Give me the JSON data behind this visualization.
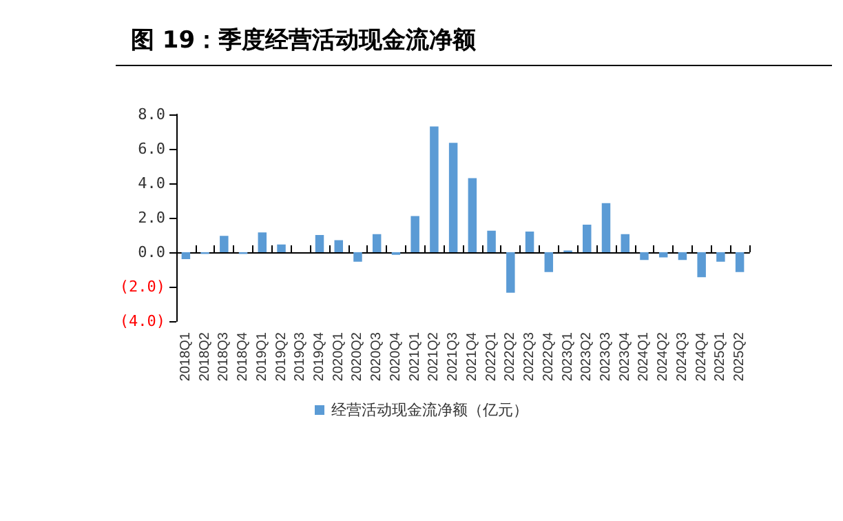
{
  "chart_data": {
    "type": "bar",
    "title": "图 19：季度经营活动现金流净额",
    "categories": [
      "2018Q1",
      "2018Q2",
      "2018Q3",
      "2018Q4",
      "2019Q1",
      "2019Q2",
      "2019Q3",
      "2019Q4",
      "2020Q1",
      "2020Q2",
      "2020Q3",
      "2020Q4",
      "2021Q1",
      "2021Q2",
      "2021Q3",
      "2021Q4",
      "2022Q1",
      "2022Q2",
      "2022Q3",
      "2022Q4",
      "2023Q1",
      "2023Q2",
      "2023Q3",
      "2023Q4",
      "2024Q1",
      "2024Q2",
      "2024Q3",
      "2024Q4",
      "2025Q1",
      "2025Q2"
    ],
    "series": [
      {
        "name": "经营活动现金流净额（亿元）",
        "color": "#5b9bd5",
        "values": [
          -0.4,
          -0.1,
          0.95,
          -0.1,
          1.15,
          0.45,
          0,
          1.0,
          0.7,
          -0.55,
          1.05,
          -0.15,
          2.1,
          7.3,
          6.35,
          4.3,
          1.25,
          -2.35,
          1.2,
          -1.15,
          0.1,
          1.6,
          2.85,
          1.05,
          -0.45,
          -0.3,
          -0.45,
          -1.45,
          -0.55,
          -1.15
        ]
      }
    ],
    "ylim": [
      -4,
      8
    ],
    "yticks": [
      {
        "value": -4,
        "label": "(4.0)"
      },
      {
        "value": -2,
        "label": "(2.0)"
      },
      {
        "value": 0,
        "label": "0.0"
      },
      {
        "value": 2,
        "label": "2.0"
      },
      {
        "value": 4,
        "label": "4.0"
      },
      {
        "value": 6,
        "label": "6.0"
      },
      {
        "value": 8,
        "label": "8.0"
      }
    ],
    "legend": "bottom"
  }
}
